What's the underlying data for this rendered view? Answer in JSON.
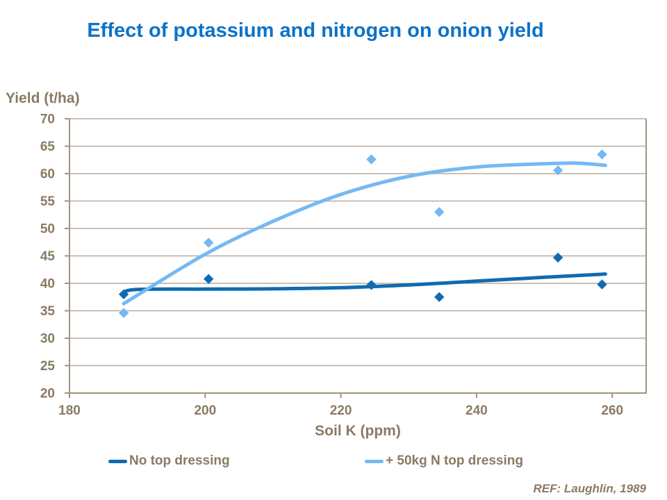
{
  "title": "Effect of potassium and nitrogen on onion yield",
  "annotation": "REF: Laughlin, 1989",
  "colors": {
    "title": "#0c72c7",
    "axis_text": "#8a7a64",
    "gridline": "#b9ab99",
    "axis_line": "#a3937f",
    "series_dark": "#0e6bb2",
    "series_light": "#74b9f3",
    "background": "#ffffff"
  },
  "legend": {
    "items": [
      {
        "label": "No top dressing"
      },
      {
        "label": "+ 50kg N top dressing"
      }
    ]
  },
  "chart_data": {
    "type": "scatter",
    "title": "Effect of potassium and nitrogen on onion yield",
    "xlabel": "Soil K (ppm)",
    "ylabel": "Yield (t/ha)",
    "xlim": [
      180,
      265
    ],
    "ylim": [
      20,
      70
    ],
    "xticks": [
      180,
      200,
      220,
      240,
      260
    ],
    "yticks": [
      20,
      25,
      30,
      35,
      40,
      45,
      50,
      55,
      60,
      65,
      70
    ],
    "grid": "horizontal",
    "legend_position": "bottom",
    "marker": "diamond",
    "series": [
      {
        "name": "No top dressing",
        "color": "#0e6bb2",
        "points": [
          [
            188,
            38
          ],
          [
            200.5,
            40.8
          ],
          [
            224.5,
            39.7
          ],
          [
            234.5,
            37.5
          ],
          [
            252,
            44.7
          ],
          [
            258.5,
            39.8
          ]
        ],
        "trend": [
          [
            188,
            37.9
          ],
          [
            189.5,
            38.85
          ],
          [
            200,
            38.95
          ],
          [
            210,
            39.0
          ],
          [
            220,
            39.2
          ],
          [
            230,
            39.7
          ],
          [
            240,
            40.4
          ],
          [
            250,
            41.1
          ],
          [
            259,
            41.7
          ]
        ]
      },
      {
        "name": "+ 50kg N top dressing",
        "color": "#74b9f3",
        "points": [
          [
            188,
            34.6
          ],
          [
            200.5,
            47.4
          ],
          [
            224.5,
            62.6
          ],
          [
            234.5,
            53
          ],
          [
            252,
            60.6
          ],
          [
            258.5,
            63.5
          ]
        ],
        "trend": [
          [
            188,
            36.3
          ],
          [
            200,
            45.3
          ],
          [
            210,
            51.3
          ],
          [
            220,
            56.2
          ],
          [
            230,
            59.5
          ],
          [
            240,
            61.2
          ],
          [
            250,
            61.8
          ],
          [
            255,
            61.9
          ],
          [
            259,
            61.5
          ]
        ]
      }
    ]
  }
}
